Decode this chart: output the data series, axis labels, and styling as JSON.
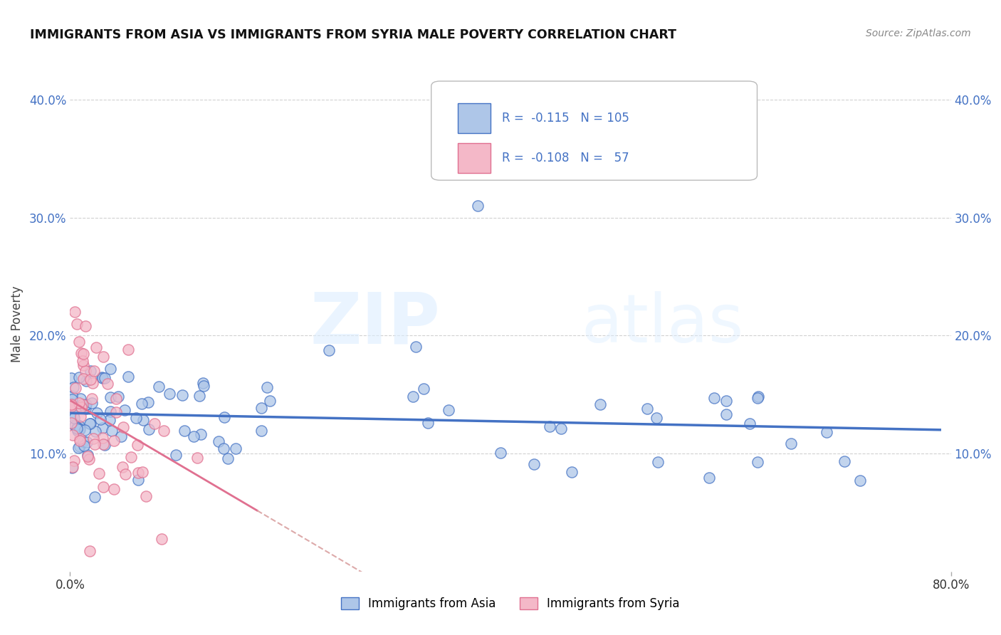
{
  "title": "IMMIGRANTS FROM ASIA VS IMMIGRANTS FROM SYRIA MALE POVERTY CORRELATION CHART",
  "source": "Source: ZipAtlas.com",
  "ylabel": "Male Poverty",
  "watermark_zip": "ZIP",
  "watermark_atlas": "atlas",
  "r_asia": -0.115,
  "n_asia": 105,
  "r_syria": -0.108,
  "n_syria": 57,
  "xlim": [
    0.0,
    0.8
  ],
  "ylim": [
    0.0,
    0.42
  ],
  "yticks": [
    0.1,
    0.2,
    0.3,
    0.4
  ],
  "ytick_labels": [
    "10.0%",
    "20.0%",
    "30.0%",
    "40.0%"
  ],
  "color_asia_fill": "#aec6e8",
  "color_asia_edge": "#4472c4",
  "color_syria_fill": "#f4b8c8",
  "color_syria_edge": "#e07090",
  "color_asia_line": "#4472c4",
  "color_syria_line": "#e07090",
  "background": "#ffffff",
  "grid_color": "#cccccc"
}
